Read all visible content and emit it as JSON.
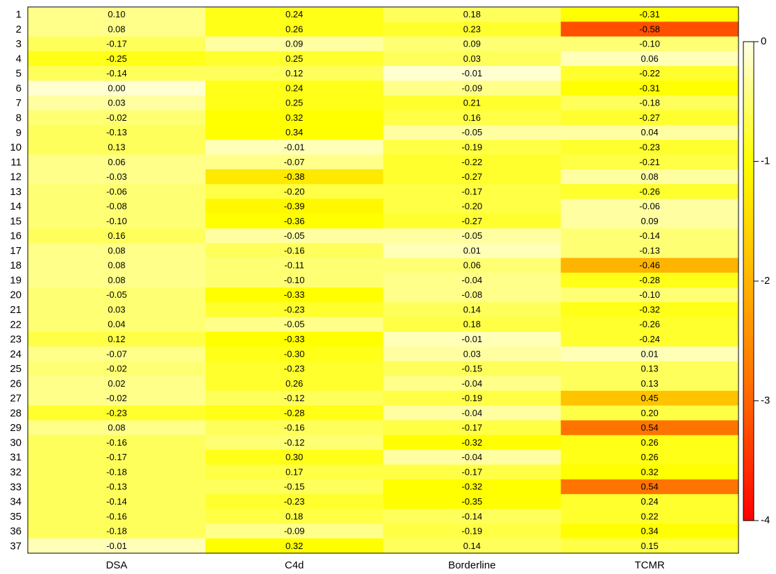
{
  "chart_data": {
    "type": "heatmap",
    "columns": [
      "DSA",
      "C4d",
      "Borderline",
      "TCMR"
    ],
    "rows": [
      "1",
      "2",
      "3",
      "4",
      "5",
      "6",
      "7",
      "8",
      "9",
      "10",
      "11",
      "12",
      "13",
      "14",
      "15",
      "16",
      "17",
      "18",
      "19",
      "20",
      "21",
      "22",
      "23",
      "24",
      "25",
      "26",
      "27",
      "28",
      "29",
      "30",
      "31",
      "32",
      "33",
      "34",
      "35",
      "36",
      "37"
    ],
    "values": [
      [
        0.1,
        0.24,
        0.18,
        -0.31
      ],
      [
        0.08,
        0.26,
        0.23,
        -0.58
      ],
      [
        -0.17,
        0.09,
        0.09,
        -0.1
      ],
      [
        -0.25,
        0.25,
        0.03,
        0.06
      ],
      [
        -0.14,
        0.12,
        -0.01,
        -0.22
      ],
      [
        0,
        0.24,
        -0.09,
        -0.31
      ],
      [
        0.03,
        0.25,
        0.21,
        -0.18
      ],
      [
        -0.02,
        0.32,
        0.16,
        -0.27
      ],
      [
        -0.13,
        0.34,
        -0.05,
        0.04
      ],
      [
        0.13,
        -0.01,
        -0.19,
        -0.23
      ],
      [
        0.06,
        -0.07,
        -0.22,
        -0.21
      ],
      [
        -0.03,
        -0.38,
        -0.27,
        0.08
      ],
      [
        -0.06,
        -0.2,
        -0.17,
        -0.26
      ],
      [
        -0.08,
        -0.39,
        -0.2,
        -0.06
      ],
      [
        -0.1,
        -0.36,
        -0.27,
        0.09
      ],
      [
        0.16,
        -0.05,
        -0.05,
        -0.14
      ],
      [
        0.08,
        -0.16,
        0.01,
        -0.13
      ],
      [
        0.08,
        -0.11,
        0.06,
        -0.46
      ],
      [
        0.08,
        -0.1,
        -0.04,
        -0.28
      ],
      [
        -0.05,
        -0.33,
        -0.08,
        -0.1
      ],
      [
        0.03,
        -0.23,
        0.14,
        -0.32
      ],
      [
        0.04,
        -0.05,
        0.18,
        -0.26
      ],
      [
        0.12,
        -0.33,
        -0.01,
        -0.24
      ],
      [
        -0.07,
        -0.3,
        0.03,
        0.01
      ],
      [
        -0.02,
        -0.23,
        -0.15,
        0.13
      ],
      [
        0.02,
        0.26,
        -0.04,
        0.13
      ],
      [
        -0.02,
        -0.12,
        -0.19,
        0.45
      ],
      [
        -0.23,
        -0.28,
        -0.04,
        0.2
      ],
      [
        0.08,
        -0.16,
        -0.17,
        0.54
      ],
      [
        -0.16,
        -0.12,
        -0.32,
        0.26
      ],
      [
        -0.17,
        0.3,
        -0.04,
        0.26
      ],
      [
        -0.18,
        0.17,
        -0.17,
        0.32
      ],
      [
        -0.13,
        -0.15,
        -0.32,
        0.54
      ],
      [
        -0.14,
        -0.23,
        -0.35,
        0.24
      ],
      [
        -0.16,
        0.18,
        -0.14,
        0.22
      ],
      [
        -0.18,
        -0.09,
        -0.19,
        0.34
      ],
      [
        -0.01,
        0.32,
        0.14,
        0.15
      ]
    ],
    "value_labels": [
      [
        "0.10",
        "0.24",
        "0.18",
        "-0.31"
      ],
      [
        "0.08",
        "0.26",
        "0.23",
        "-0.58"
      ],
      [
        "-0.17",
        "0.09",
        "0.09",
        "-0.10"
      ],
      [
        "-0.25",
        "0.25",
        "0.03",
        "0.06"
      ],
      [
        "-0.14",
        "0.12",
        "-0.01",
        "-0.22"
      ],
      [
        "0.00",
        "0.24",
        "-0.09",
        "-0.31"
      ],
      [
        "0.03",
        "0.25",
        "0.21",
        "-0.18"
      ],
      [
        "-0.02",
        "0.32",
        "0.16",
        "-0.27"
      ],
      [
        "-0.13",
        "0.34",
        "-0.05",
        "0.04"
      ],
      [
        "0.13",
        "-0.01",
        "-0.19",
        "-0.23"
      ],
      [
        "0.06",
        "-0.07",
        "-0.22",
        "-0.21"
      ],
      [
        "-0.03",
        "-0.38",
        "-0.27",
        "0.08"
      ],
      [
        "-0.06",
        "-0.20",
        "-0.17",
        "-0.26"
      ],
      [
        "-0.08",
        "-0.39",
        "-0.20",
        "-0.06"
      ],
      [
        "-0.10",
        "-0.36",
        "-0.27",
        "0.09"
      ],
      [
        "0.16",
        "-0.05",
        "-0.05",
        "-0.14"
      ],
      [
        "0.08",
        "-0.16",
        "0.01",
        "-0.13"
      ],
      [
        "0.08",
        "-0.11",
        "0.06",
        "-0.46"
      ],
      [
        "0.08",
        "-0.10",
        "-0.04",
        "-0.28"
      ],
      [
        "-0.05",
        "-0.33",
        "-0.08",
        "-0.10"
      ],
      [
        "0.03",
        "-0.23",
        "0.14",
        "-0.32"
      ],
      [
        "0.04",
        "-0.05",
        "0.18",
        "-0.26"
      ],
      [
        "0.12",
        "-0.33",
        "-0.01",
        "-0.24"
      ],
      [
        "-0.07",
        "-0.30",
        "0.03",
        "0.01"
      ],
      [
        "-0.02",
        "-0.23",
        "-0.15",
        "0.13"
      ],
      [
        "0.02",
        "0.26",
        "-0.04",
        "0.13"
      ],
      [
        "-0.02",
        "-0.12",
        "-0.19",
        "0.45"
      ],
      [
        "-0.23",
        "-0.28",
        "-0.04",
        "0.20"
      ],
      [
        "0.08",
        "-0.16",
        "-0.17",
        "0.54"
      ],
      [
        "-0.16",
        "-0.12",
        "-0.32",
        "0.26"
      ],
      [
        "-0.17",
        "0.30",
        "-0.04",
        "0.26"
      ],
      [
        "-0.18",
        "0.17",
        "-0.17",
        "0.32"
      ],
      [
        "-0.13",
        "-0.15",
        "-0.32",
        "0.54"
      ],
      [
        "-0.14",
        "-0.23",
        "-0.35",
        "0.24"
      ],
      [
        "-0.16",
        "0.18",
        "-0.14",
        "0.22"
      ],
      [
        "-0.18",
        "-0.09",
        "-0.19",
        "0.34"
      ],
      [
        "-0.01",
        "0.32",
        "0.14",
        "0.15"
      ]
    ],
    "color_values": [
      [
        -0.4,
        -0.9,
        -0.6,
        -1.0
      ],
      [
        -0.4,
        -0.9,
        -0.8,
        -3.2
      ],
      [
        -0.6,
        -0.3,
        -0.5,
        -0.5
      ],
      [
        -0.9,
        -0.8,
        -0.6,
        -0.2
      ],
      [
        -0.6,
        -0.6,
        -0.1,
        -0.8
      ],
      [
        -0.1,
        -0.9,
        -0.4,
        -1.0
      ],
      [
        -0.3,
        -0.9,
        -0.8,
        -0.6
      ],
      [
        -0.5,
        -1.0,
        -0.7,
        -0.8
      ],
      [
        -0.6,
        -1.0,
        -0.3,
        -0.3
      ],
      [
        -0.6,
        -0.2,
        -0.7,
        -0.8
      ],
      [
        -0.4,
        -0.4,
        -0.8,
        -0.7
      ],
      [
        -0.4,
        -1.3,
        -0.8,
        -0.3
      ],
      [
        -0.5,
        -0.7,
        -0.7,
        -0.8
      ],
      [
        -0.5,
        -1.1,
        -0.7,
        -0.3
      ],
      [
        -0.5,
        -1.0,
        -0.8,
        -0.3
      ],
      [
        -0.6,
        -0.3,
        -0.3,
        -0.5
      ],
      [
        -0.4,
        -0.6,
        -0.2,
        -0.5
      ],
      [
        -0.4,
        -0.5,
        -0.5,
        -2.0
      ],
      [
        -0.4,
        -0.5,
        -0.4,
        -0.9
      ],
      [
        -0.5,
        -1.0,
        -0.4,
        -0.5
      ],
      [
        -0.5,
        -0.8,
        -0.6,
        -0.9
      ],
      [
        -0.5,
        -0.4,
        -0.7,
        -0.8
      ],
      [
        -0.7,
        -1.0,
        -0.2,
        -0.8
      ],
      [
        -0.4,
        -0.9,
        -0.3,
        -0.2
      ],
      [
        -0.5,
        -0.8,
        -0.6,
        -0.6
      ],
      [
        -0.4,
        -0.8,
        -0.4,
        -0.6
      ],
      [
        -0.4,
        -0.6,
        -0.7,
        -1.8
      ],
      [
        -0.8,
        -0.9,
        -0.3,
        -0.7
      ],
      [
        -0.4,
        -0.6,
        -0.7,
        -2.8
      ],
      [
        -0.6,
        -0.5,
        -1.0,
        -0.9
      ],
      [
        -0.6,
        -0.9,
        -0.3,
        -0.9
      ],
      [
        -0.6,
        -0.7,
        -0.7,
        -1.0
      ],
      [
        -0.6,
        -0.6,
        -1.0,
        -2.8
      ],
      [
        -0.6,
        -0.8,
        -1.0,
        -0.8
      ],
      [
        -0.6,
        -0.7,
        -0.6,
        -0.8
      ],
      [
        -0.6,
        -0.4,
        -0.7,
        -1.0
      ],
      [
        -0.2,
        -1.0,
        -0.6,
        -0.7
      ]
    ],
    "zlim": [
      -4,
      0
    ],
    "zticks": [
      0,
      -1,
      -2,
      -3,
      -4
    ],
    "colors": [
      "#ff0000",
      "#ff6400",
      "#ffb400",
      "#ffff00",
      "#ffffe6"
    ]
  }
}
